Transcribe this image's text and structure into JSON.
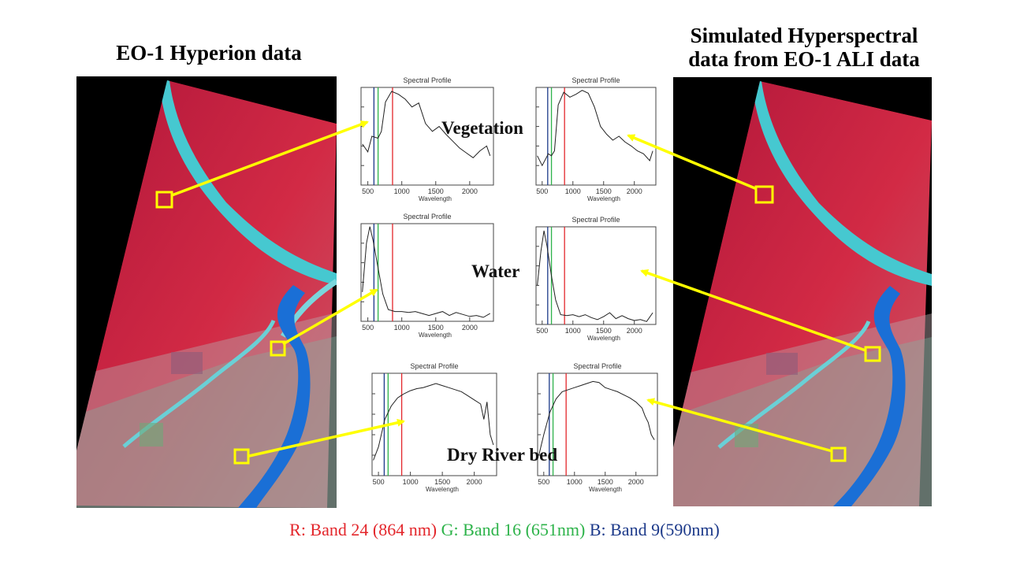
{
  "titles": {
    "left": "EO-1 Hyperion data",
    "right_line1": "Simulated Hyperspectral",
    "right_line2": "data from EO-1 ALI data"
  },
  "labels": {
    "vegetation": "Vegetation",
    "water": "Water",
    "dry_river_bed": "Dry River bed"
  },
  "caption": {
    "red": "R: Band 24 (864 nm)",
    "green": "G: Band 16 (651nm)",
    "blue": "B: Band 9(590nm)"
  },
  "colors": {
    "red": "#e3262b",
    "green": "#2db34a",
    "blue": "#1d3a8a",
    "yellow": "#ffff00"
  },
  "chart_data": [
    {
      "type": "line",
      "title": "Spectral Profile",
      "xlabel": "Wavelength",
      "xticks": [
        500,
        1000,
        1500,
        2000
      ],
      "xlim": [
        400,
        2350
      ],
      "x": [
        420,
        500,
        560,
        650,
        700,
        760,
        850,
        950,
        1050,
        1150,
        1250,
        1350,
        1450,
        1550,
        1650,
        1750,
        1850,
        1950,
        2050,
        2150,
        2250,
        2300
      ],
      "y": [
        0.42,
        0.34,
        0.5,
        0.48,
        0.55,
        0.85,
        0.96,
        0.93,
        0.88,
        0.8,
        0.84,
        0.63,
        0.55,
        0.6,
        0.52,
        0.45,
        0.38,
        0.33,
        0.28,
        0.35,
        0.4,
        0.3
      ],
      "series": [
        {
          "values": [
            0.42,
            0.34,
            0.5,
            0.48,
            0.55,
            0.85,
            0.96,
            0.93,
            0.88,
            0.8,
            0.84,
            0.63,
            0.55,
            0.6,
            0.52,
            0.45,
            0.38,
            0.33,
            0.28,
            0.35,
            0.4,
            0.3
          ]
        }
      ]
    },
    {
      "type": "line",
      "title": "Spectral Profile",
      "xlabel": "Wavelength",
      "xticks": [
        500,
        1000,
        1500,
        2000
      ],
      "xlim": [
        400,
        2350
      ],
      "x": [
        420,
        500,
        600,
        650,
        700,
        760,
        850,
        950,
        1050,
        1150,
        1250,
        1350,
        1450,
        1550,
        1650,
        1750,
        1850,
        1950,
        2050,
        2150,
        2250,
        2300
      ],
      "y": [
        0.3,
        0.2,
        0.32,
        0.3,
        0.35,
        0.82,
        0.95,
        0.9,
        0.93,
        0.97,
        0.94,
        0.8,
        0.6,
        0.52,
        0.46,
        0.5,
        0.44,
        0.4,
        0.35,
        0.32,
        0.25,
        0.35
      ],
      "series": [
        {
          "values": [
            0.3,
            0.2,
            0.32,
            0.3,
            0.35,
            0.82,
            0.95,
            0.9,
            0.93,
            0.97,
            0.94,
            0.8,
            0.6,
            0.52,
            0.46,
            0.5,
            0.44,
            0.4,
            0.35,
            0.32,
            0.25,
            0.35
          ]
        }
      ]
    },
    {
      "type": "line",
      "title": "Spectral Profile",
      "xlabel": "Wavelength",
      "xticks": [
        500,
        1000,
        1500,
        2000
      ],
      "xlim": [
        400,
        2350
      ],
      "x": [
        420,
        480,
        530,
        580,
        650,
        720,
        800,
        900,
        1000,
        1100,
        1200,
        1300,
        1400,
        1500,
        1600,
        1700,
        1800,
        1900,
        2000,
        2100,
        2200,
        2300
      ],
      "y": [
        0.3,
        0.8,
        0.97,
        0.82,
        0.55,
        0.28,
        0.12,
        0.1,
        0.1,
        0.09,
        0.1,
        0.08,
        0.06,
        0.08,
        0.1,
        0.06,
        0.09,
        0.07,
        0.05,
        0.06,
        0.04,
        0.08
      ],
      "series": [
        {
          "values": [
            0.3,
            0.8,
            0.97,
            0.82,
            0.55,
            0.28,
            0.12,
            0.1,
            0.1,
            0.09,
            0.1,
            0.08,
            0.06,
            0.08,
            0.1,
            0.06,
            0.09,
            0.07,
            0.05,
            0.06,
            0.04,
            0.08
          ]
        }
      ]
    },
    {
      "type": "line",
      "title": "Spectral Profile",
      "xlabel": "Wavelength",
      "xticks": [
        500,
        1000,
        1500,
        2000
      ],
      "xlim": [
        400,
        2350
      ],
      "x": [
        420,
        480,
        530,
        580,
        650,
        720,
        800,
        900,
        1000,
        1100,
        1200,
        1300,
        1400,
        1500,
        1600,
        1700,
        1800,
        1900,
        2000,
        2100,
        2200,
        2300
      ],
      "y": [
        0.4,
        0.75,
        0.96,
        0.8,
        0.5,
        0.25,
        0.1,
        0.09,
        0.1,
        0.08,
        0.1,
        0.07,
        0.05,
        0.08,
        0.12,
        0.06,
        0.09,
        0.06,
        0.04,
        0.05,
        0.03,
        0.12
      ],
      "series": [
        {
          "values": [
            0.4,
            0.75,
            0.96,
            0.8,
            0.5,
            0.25,
            0.1,
            0.09,
            0.1,
            0.08,
            0.1,
            0.07,
            0.05,
            0.08,
            0.12,
            0.06,
            0.09,
            0.06,
            0.04,
            0.05,
            0.03,
            0.12
          ]
        }
      ]
    },
    {
      "type": "line",
      "title": "Spectral Profile",
      "xlabel": "Wavelength",
      "xticks": [
        500,
        1000,
        1500,
        2000
      ],
      "xlim": [
        400,
        2350
      ],
      "x": [
        420,
        500,
        600,
        700,
        800,
        900,
        1000,
        1100,
        1200,
        1300,
        1400,
        1500,
        1600,
        1700,
        1800,
        1900,
        2000,
        2100,
        2150,
        2200,
        2250,
        2300
      ],
      "y": [
        0.15,
        0.28,
        0.55,
        0.68,
        0.76,
        0.8,
        0.83,
        0.85,
        0.86,
        0.88,
        0.9,
        0.88,
        0.86,
        0.84,
        0.82,
        0.78,
        0.74,
        0.7,
        0.55,
        0.72,
        0.4,
        0.3
      ],
      "series": [
        {
          "values": [
            0.15,
            0.28,
            0.55,
            0.68,
            0.76,
            0.8,
            0.83,
            0.85,
            0.86,
            0.88,
            0.9,
            0.88,
            0.86,
            0.84,
            0.82,
            0.78,
            0.74,
            0.7,
            0.55,
            0.72,
            0.4,
            0.3
          ]
        }
      ]
    },
    {
      "type": "line",
      "title": "Spectral Profile",
      "xlabel": "Wavelength",
      "xticks": [
        500,
        1000,
        1500,
        2000
      ],
      "xlim": [
        400,
        2350
      ],
      "x": [
        420,
        500,
        600,
        700,
        800,
        900,
        1000,
        1100,
        1200,
        1300,
        1400,
        1500,
        1600,
        1700,
        1800,
        1900,
        2000,
        2100,
        2150,
        2200,
        2250,
        2300
      ],
      "y": [
        0.2,
        0.4,
        0.62,
        0.75,
        0.82,
        0.84,
        0.86,
        0.88,
        0.9,
        0.92,
        0.91,
        0.86,
        0.84,
        0.82,
        0.79,
        0.76,
        0.72,
        0.66,
        0.58,
        0.52,
        0.4,
        0.35
      ],
      "series": [
        {
          "values": [
            0.2,
            0.4,
            0.62,
            0.75,
            0.82,
            0.84,
            0.86,
            0.88,
            0.9,
            0.92,
            0.91,
            0.86,
            0.84,
            0.82,
            0.79,
            0.76,
            0.72,
            0.66,
            0.58,
            0.52,
            0.4,
            0.35
          ]
        }
      ]
    }
  ]
}
